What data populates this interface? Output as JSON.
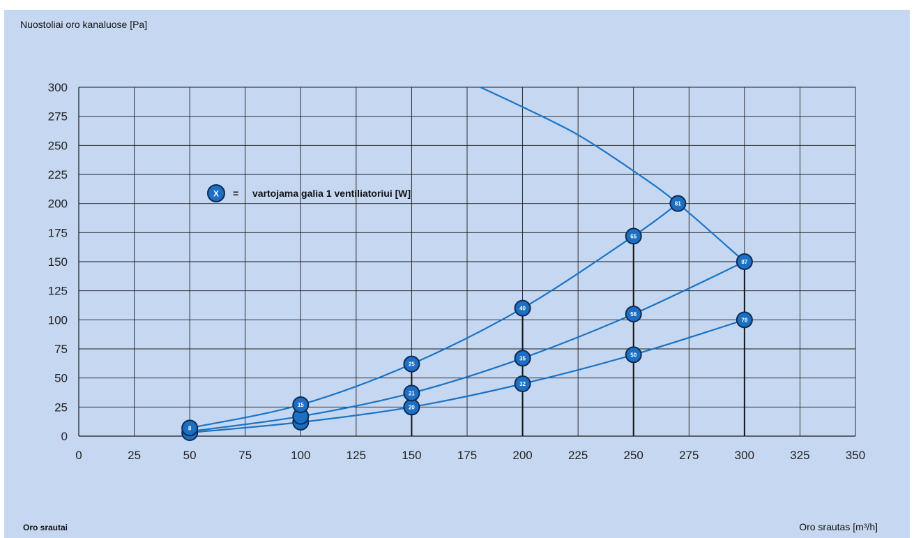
{
  "chart_data": {
    "type": "line",
    "ylabel": "Nuostoliai oro kanaluose [Pa]",
    "xlabel": "Oro srautas [m³/h]",
    "footer_label": "Oro srautai",
    "legend": {
      "symbol": "X",
      "equals": "=",
      "text": "vartojama galia 1 ventiliatoriui [W]"
    },
    "xlim": [
      0,
      350
    ],
    "ylim": [
      0,
      300
    ],
    "xticks": [
      0,
      25,
      50,
      75,
      100,
      125,
      150,
      175,
      200,
      225,
      250,
      275,
      300,
      325,
      350
    ],
    "yticks": [
      0,
      25,
      50,
      75,
      100,
      125,
      150,
      175,
      200,
      225,
      250,
      275,
      300
    ],
    "grid": true,
    "colors": {
      "series": "#1a73c6",
      "marker": "#1d6fc2",
      "marker_outline": "#0c2a55",
      "panel": "#c6d8f1",
      "grid": "#1a1a1a"
    },
    "fan_curve": [
      [
        181,
        300
      ],
      [
        200,
        283
      ],
      [
        225,
        259
      ],
      [
        250,
        228
      ],
      [
        270,
        200
      ],
      [
        300,
        150
      ]
    ],
    "system_curves": [
      [
        [
          50,
          7
        ],
        [
          100,
          27
        ],
        [
          150,
          62
        ],
        [
          200,
          110
        ],
        [
          250,
          172
        ],
        [
          270,
          200
        ]
      ],
      [
        [
          50,
          4
        ],
        [
          100,
          17
        ],
        [
          150,
          37
        ],
        [
          200,
          67
        ],
        [
          250,
          105
        ],
        [
          300,
          150
        ]
      ],
      [
        [
          50,
          3
        ],
        [
          100,
          12
        ],
        [
          150,
          25
        ],
        [
          200,
          45
        ],
        [
          250,
          70
        ],
        [
          300,
          100
        ]
      ]
    ],
    "vertical_lines": [
      {
        "x": 150,
        "y": 62
      },
      {
        "x": 200,
        "y": 110
      },
      {
        "x": 250,
        "y": 172
      },
      {
        "x": 300,
        "y": 150
      }
    ],
    "points": [
      {
        "x": 50,
        "y": 3,
        "label": ""
      },
      {
        "x": 50,
        "y": 7,
        "label": "8"
      },
      {
        "x": 100,
        "y": 12,
        "label": "13"
      },
      {
        "x": 100,
        "y": 17,
        "label": ""
      },
      {
        "x": 100,
        "y": 27,
        "label": "15"
      },
      {
        "x": 150,
        "y": 25,
        "label": "20"
      },
      {
        "x": 150,
        "y": 37,
        "label": "21"
      },
      {
        "x": 150,
        "y": 62,
        "label": "25"
      },
      {
        "x": 200,
        "y": 45,
        "label": "32"
      },
      {
        "x": 200,
        "y": 67,
        "label": "35"
      },
      {
        "x": 200,
        "y": 110,
        "label": "40"
      },
      {
        "x": 250,
        "y": 70,
        "label": "50"
      },
      {
        "x": 250,
        "y": 105,
        "label": "56"
      },
      {
        "x": 250,
        "y": 172,
        "label": "65"
      },
      {
        "x": 270,
        "y": 200,
        "label": "81"
      },
      {
        "x": 300,
        "y": 100,
        "label": "78"
      },
      {
        "x": 300,
        "y": 150,
        "label": "87"
      }
    ]
  }
}
